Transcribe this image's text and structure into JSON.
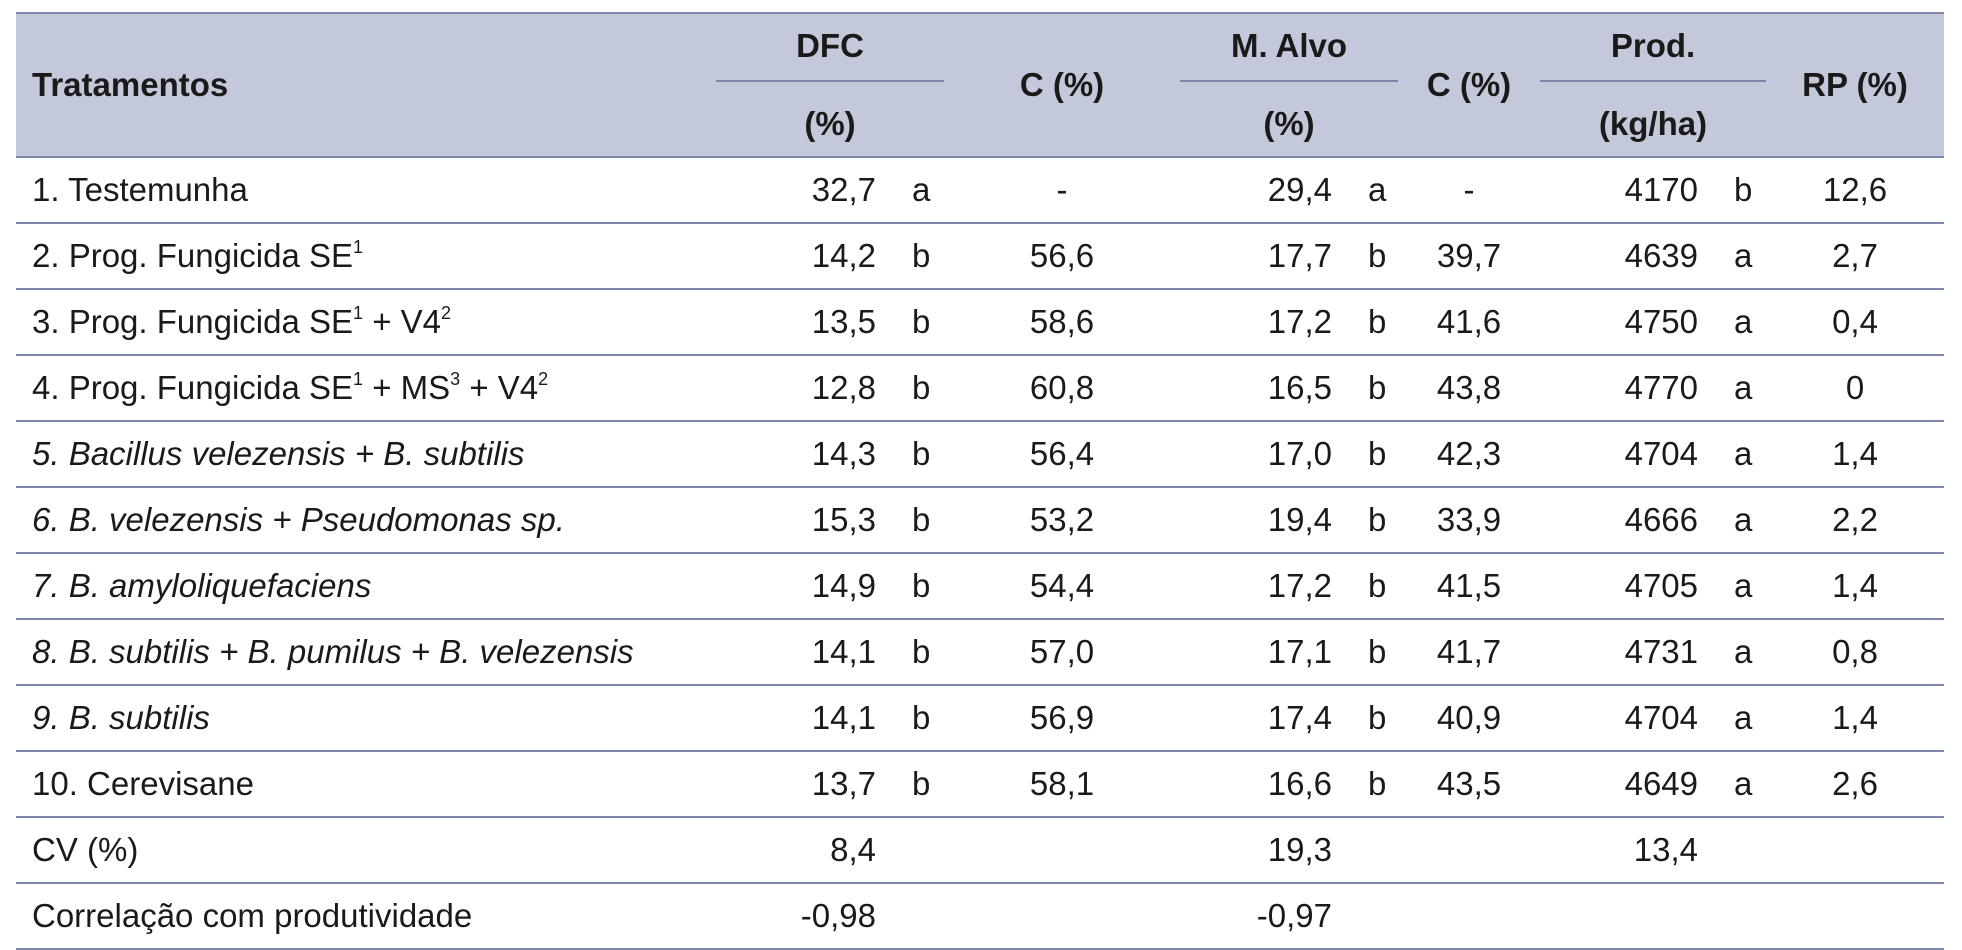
{
  "header": {
    "tratamentos": "Tratamentos",
    "dfc": "DFC",
    "dfc_unit": "(%)",
    "c1": "C (%)",
    "malvo": "M. Alvo",
    "malvo_unit": "(%)",
    "c2": "C (%)",
    "prod": "Prod.",
    "prod_unit": "(kg/ha)",
    "rp": "RP (%)"
  },
  "rows": [
    {
      "pre": "1. Testemunha",
      "sup1": "",
      "mid": "",
      "sup2": "",
      "mid2": "",
      "sup3": "",
      "dfc": "32,7",
      "dfc_l": "a",
      "c1": "-",
      "ma": "29,4",
      "ma_l": "a",
      "c2": "-",
      "prod": "4170",
      "prod_l": "b",
      "rp": "12,6"
    },
    {
      "pre": "2. Prog. Fungicida SE",
      "sup1": "1",
      "mid": "",
      "sup2": "",
      "mid2": "",
      "sup3": "",
      "dfc": "14,2",
      "dfc_l": "b",
      "c1": "56,6",
      "ma": "17,7",
      "ma_l": "b",
      "c2": "39,7",
      "prod": "4639",
      "prod_l": "a",
      "rp": "2,7"
    },
    {
      "pre": "3. Prog. Fungicida SE",
      "sup1": "1",
      "mid": " + V4",
      "sup2": "2",
      "mid2": "",
      "sup3": "",
      "dfc": "13,5",
      "dfc_l": "b",
      "c1": "58,6",
      "ma": "17,2",
      "ma_l": "b",
      "c2": "41,6",
      "prod": "4750",
      "prod_l": "a",
      "rp": "0,4"
    },
    {
      "pre": "4. Prog. Fungicida SE",
      "sup1": "1",
      "mid": " + MS",
      "sup2": "3",
      "mid2": " + V4",
      "sup3": "2",
      "dfc": "12,8",
      "dfc_l": "b",
      "c1": "60,8",
      "ma": "16,5",
      "ma_l": "b",
      "c2": "43,8",
      "prod": "4770",
      "prod_l": "a",
      "rp": "0"
    },
    {
      "italic": "5. Bacillus velezensis + B. subtilis",
      "dfc": "14,3",
      "dfc_l": "b",
      "c1": "56,4",
      "ma": "17,0",
      "ma_l": "b",
      "c2": "42,3",
      "prod": "4704",
      "prod_l": "a",
      "rp": "1,4"
    },
    {
      "italic": "6. B. velezensis + Pseudomonas sp.",
      "dfc": "15,3",
      "dfc_l": "b",
      "c1": "53,2",
      "ma": "19,4",
      "ma_l": "b",
      "c2": "33,9",
      "prod": "4666",
      "prod_l": "a",
      "rp": "2,2"
    },
    {
      "italic": "7. B. amyloliquefaciens",
      "dfc": "14,9",
      "dfc_l": "b",
      "c1": "54,4",
      "ma": "17,2",
      "ma_l": "b",
      "c2": "41,5",
      "prod": "4705",
      "prod_l": "a",
      "rp": "1,4"
    },
    {
      "italic": "8. B. subtilis + B. pumilus + B. velezensis",
      "dfc": "14,1",
      "dfc_l": "b",
      "c1": "57,0",
      "ma": "17,1",
      "ma_l": "b",
      "c2": "41,7",
      "prod": "4731",
      "prod_l": "a",
      "rp": "0,8"
    },
    {
      "italic": "9. B. subtilis",
      "dfc": "14,1",
      "dfc_l": "b",
      "c1": "56,9",
      "ma": "17,4",
      "ma_l": "b",
      "c2": "40,9",
      "prod": "4704",
      "prod_l": "a",
      "rp": "1,4"
    },
    {
      "pre": "10. Cerevisane",
      "sup1": "",
      "mid": "",
      "sup2": "",
      "mid2": "",
      "sup3": "",
      "dfc": "13,7",
      "dfc_l": "b",
      "c1": "58,1",
      "ma": "16,6",
      "ma_l": "b",
      "c2": "43,5",
      "prod": "4649",
      "prod_l": "a",
      "rp": "2,6"
    },
    {
      "pre": "CV (%)",
      "sup1": "",
      "mid": "",
      "sup2": "",
      "mid2": "",
      "sup3": "",
      "dfc": "8,4",
      "dfc_l": "",
      "c1": "",
      "ma": "19,3",
      "ma_l": "",
      "c2": "",
      "prod": "13,4",
      "prod_l": "",
      "rp": ""
    },
    {
      "pre": "Correlação com produtividade",
      "sup1": "",
      "mid": "",
      "sup2": "",
      "mid2": "",
      "sup3": "",
      "dfc": "-0,98",
      "dfc_l": "",
      "c1": "",
      "ma": "-0,97",
      "ma_l": "",
      "c2": "",
      "prod": "",
      "prod_l": "",
      "rp": ""
    }
  ]
}
